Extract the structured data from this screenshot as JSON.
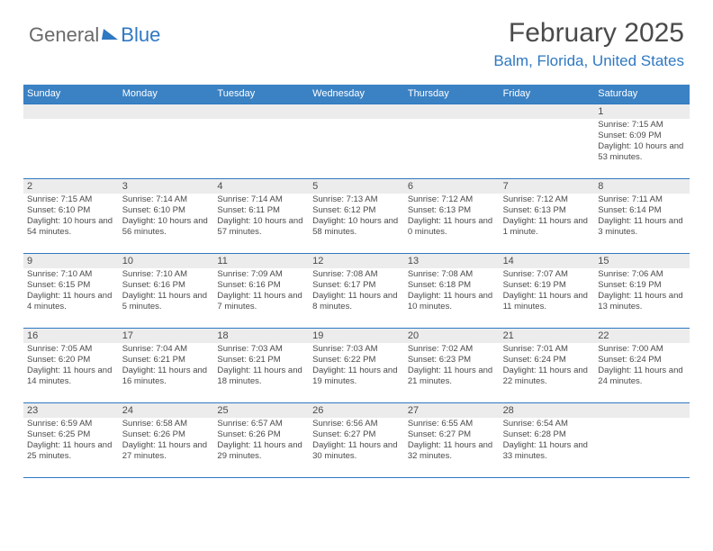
{
  "logo": {
    "general": "General",
    "blue": "Blue"
  },
  "title": "February 2025",
  "location": "Balm, Florida, United States",
  "header_color": "#3b82c4",
  "accent_color": "#2f78c2",
  "daynum_bg": "#ececec",
  "days_of_week": [
    "Sunday",
    "Monday",
    "Tuesday",
    "Wednesday",
    "Thursday",
    "Friday",
    "Saturday"
  ],
  "weeks": [
    [
      {
        "n": "",
        "lines": []
      },
      {
        "n": "",
        "lines": []
      },
      {
        "n": "",
        "lines": []
      },
      {
        "n": "",
        "lines": []
      },
      {
        "n": "",
        "lines": []
      },
      {
        "n": "",
        "lines": []
      },
      {
        "n": "1",
        "lines": [
          "Sunrise: 7:15 AM",
          "Sunset: 6:09 PM",
          "Daylight: 10 hours and 53 minutes."
        ]
      }
    ],
    [
      {
        "n": "2",
        "lines": [
          "Sunrise: 7:15 AM",
          "Sunset: 6:10 PM",
          "Daylight: 10 hours and 54 minutes."
        ]
      },
      {
        "n": "3",
        "lines": [
          "Sunrise: 7:14 AM",
          "Sunset: 6:10 PM",
          "Daylight: 10 hours and 56 minutes."
        ]
      },
      {
        "n": "4",
        "lines": [
          "Sunrise: 7:14 AM",
          "Sunset: 6:11 PM",
          "Daylight: 10 hours and 57 minutes."
        ]
      },
      {
        "n": "5",
        "lines": [
          "Sunrise: 7:13 AM",
          "Sunset: 6:12 PM",
          "Daylight: 10 hours and 58 minutes."
        ]
      },
      {
        "n": "6",
        "lines": [
          "Sunrise: 7:12 AM",
          "Sunset: 6:13 PM",
          "Daylight: 11 hours and 0 minutes."
        ]
      },
      {
        "n": "7",
        "lines": [
          "Sunrise: 7:12 AM",
          "Sunset: 6:13 PM",
          "Daylight: 11 hours and 1 minute."
        ]
      },
      {
        "n": "8",
        "lines": [
          "Sunrise: 7:11 AM",
          "Sunset: 6:14 PM",
          "Daylight: 11 hours and 3 minutes."
        ]
      }
    ],
    [
      {
        "n": "9",
        "lines": [
          "Sunrise: 7:10 AM",
          "Sunset: 6:15 PM",
          "Daylight: 11 hours and 4 minutes."
        ]
      },
      {
        "n": "10",
        "lines": [
          "Sunrise: 7:10 AM",
          "Sunset: 6:16 PM",
          "Daylight: 11 hours and 5 minutes."
        ]
      },
      {
        "n": "11",
        "lines": [
          "Sunrise: 7:09 AM",
          "Sunset: 6:16 PM",
          "Daylight: 11 hours and 7 minutes."
        ]
      },
      {
        "n": "12",
        "lines": [
          "Sunrise: 7:08 AM",
          "Sunset: 6:17 PM",
          "Daylight: 11 hours and 8 minutes."
        ]
      },
      {
        "n": "13",
        "lines": [
          "Sunrise: 7:08 AM",
          "Sunset: 6:18 PM",
          "Daylight: 11 hours and 10 minutes."
        ]
      },
      {
        "n": "14",
        "lines": [
          "Sunrise: 7:07 AM",
          "Sunset: 6:19 PM",
          "Daylight: 11 hours and 11 minutes."
        ]
      },
      {
        "n": "15",
        "lines": [
          "Sunrise: 7:06 AM",
          "Sunset: 6:19 PM",
          "Daylight: 11 hours and 13 minutes."
        ]
      }
    ],
    [
      {
        "n": "16",
        "lines": [
          "Sunrise: 7:05 AM",
          "Sunset: 6:20 PM",
          "Daylight: 11 hours and 14 minutes."
        ]
      },
      {
        "n": "17",
        "lines": [
          "Sunrise: 7:04 AM",
          "Sunset: 6:21 PM",
          "Daylight: 11 hours and 16 minutes."
        ]
      },
      {
        "n": "18",
        "lines": [
          "Sunrise: 7:03 AM",
          "Sunset: 6:21 PM",
          "Daylight: 11 hours and 18 minutes."
        ]
      },
      {
        "n": "19",
        "lines": [
          "Sunrise: 7:03 AM",
          "Sunset: 6:22 PM",
          "Daylight: 11 hours and 19 minutes."
        ]
      },
      {
        "n": "20",
        "lines": [
          "Sunrise: 7:02 AM",
          "Sunset: 6:23 PM",
          "Daylight: 11 hours and 21 minutes."
        ]
      },
      {
        "n": "21",
        "lines": [
          "Sunrise: 7:01 AM",
          "Sunset: 6:24 PM",
          "Daylight: 11 hours and 22 minutes."
        ]
      },
      {
        "n": "22",
        "lines": [
          "Sunrise: 7:00 AM",
          "Sunset: 6:24 PM",
          "Daylight: 11 hours and 24 minutes."
        ]
      }
    ],
    [
      {
        "n": "23",
        "lines": [
          "Sunrise: 6:59 AM",
          "Sunset: 6:25 PM",
          "Daylight: 11 hours and 25 minutes."
        ]
      },
      {
        "n": "24",
        "lines": [
          "Sunrise: 6:58 AM",
          "Sunset: 6:26 PM",
          "Daylight: 11 hours and 27 minutes."
        ]
      },
      {
        "n": "25",
        "lines": [
          "Sunrise: 6:57 AM",
          "Sunset: 6:26 PM",
          "Daylight: 11 hours and 29 minutes."
        ]
      },
      {
        "n": "26",
        "lines": [
          "Sunrise: 6:56 AM",
          "Sunset: 6:27 PM",
          "Daylight: 11 hours and 30 minutes."
        ]
      },
      {
        "n": "27",
        "lines": [
          "Sunrise: 6:55 AM",
          "Sunset: 6:27 PM",
          "Daylight: 11 hours and 32 minutes."
        ]
      },
      {
        "n": "28",
        "lines": [
          "Sunrise: 6:54 AM",
          "Sunset: 6:28 PM",
          "Daylight: 11 hours and 33 minutes."
        ]
      },
      {
        "n": "",
        "lines": []
      }
    ]
  ]
}
